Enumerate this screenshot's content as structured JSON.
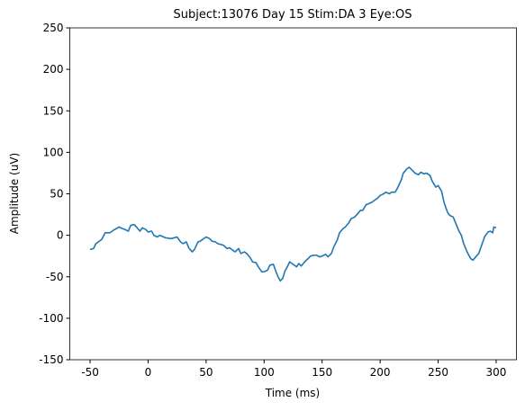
{
  "chart_data": {
    "type": "line",
    "title": "Subject:13076 Day 15 Stim:DA 3 Eye:OS",
    "xlabel": "Time (ms)",
    "ylabel": "Amplitude (uV)",
    "x": [
      -50,
      -47,
      -45,
      -40,
      -37,
      -33,
      -30,
      -25,
      -22,
      -20,
      -17,
      -15,
      -12,
      -10,
      -7,
      -5,
      -2,
      0,
      3,
      5,
      8,
      10,
      15,
      20,
      25,
      28,
      30,
      33,
      35,
      38,
      40,
      43,
      45,
      50,
      53,
      55,
      58,
      60,
      65,
      68,
      70,
      73,
      75,
      78,
      80,
      83,
      85,
      88,
      90,
      93,
      95,
      98,
      100,
      103,
      105,
      108,
      110,
      112,
      114,
      116,
      118,
      120,
      122,
      125,
      128,
      130,
      132,
      135,
      138,
      140,
      143,
      145,
      148,
      150,
      153,
      155,
      158,
      160,
      163,
      165,
      168,
      170,
      173,
      175,
      178,
      180,
      183,
      185,
      188,
      190,
      193,
      195,
      198,
      200,
      203,
      205,
      208,
      210,
      213,
      215,
      218,
      220,
      223,
      225,
      228,
      230,
      233,
      235,
      238,
      240,
      243,
      245,
      248,
      250,
      253,
      255,
      258,
      260,
      263,
      265,
      268,
      270,
      272,
      275,
      278,
      280,
      283,
      285,
      288,
      290,
      293,
      295,
      297,
      298,
      300
    ],
    "series": [
      {
        "name": "Amplitude",
        "color": "#1f77b4",
        "values": [
          -17,
          -16,
          -10,
          -5,
          3,
          3,
          6,
          10,
          8,
          7,
          5,
          12,
          13,
          10,
          5,
          9,
          7,
          4,
          5,
          0,
          -2,
          0,
          -3,
          -4,
          -2,
          -8,
          -10,
          -8,
          -15,
          -20,
          -17,
          -8,
          -7,
          -2,
          -4,
          -7,
          -8,
          -10,
          -12,
          -16,
          -15,
          -18,
          -20,
          -16,
          -22,
          -20,
          -22,
          -27,
          -32,
          -33,
          -38,
          -44,
          -44,
          -42,
          -36,
          -35,
          -43,
          -50,
          -55,
          -52,
          -43,
          -38,
          -32,
          -35,
          -38,
          -34,
          -37,
          -32,
          -28,
          -25,
          -24,
          -24,
          -26,
          -25,
          -23,
          -26,
          -22,
          -14,
          -6,
          3,
          8,
          10,
          15,
          20,
          22,
          25,
          30,
          30,
          37,
          38,
          40,
          42,
          45,
          48,
          50,
          52,
          50,
          52,
          52,
          57,
          66,
          75,
          80,
          82,
          78,
          75,
          73,
          76,
          74,
          75,
          72,
          65,
          58,
          60,
          53,
          40,
          28,
          24,
          22,
          15,
          5,
          0,
          -10,
          -20,
          -28,
          -30,
          -25,
          -22,
          -10,
          -2,
          4,
          5,
          3,
          10,
          9
        ]
      }
    ],
    "xlim": [
      -67.5,
      317.5
    ],
    "xticks": [
      -50,
      0,
      50,
      100,
      150,
      200,
      250,
      300
    ],
    "ylim": [
      -150,
      250
    ],
    "yticks": [
      -150,
      -100,
      -50,
      0,
      50,
      100,
      150,
      200,
      250
    ]
  }
}
